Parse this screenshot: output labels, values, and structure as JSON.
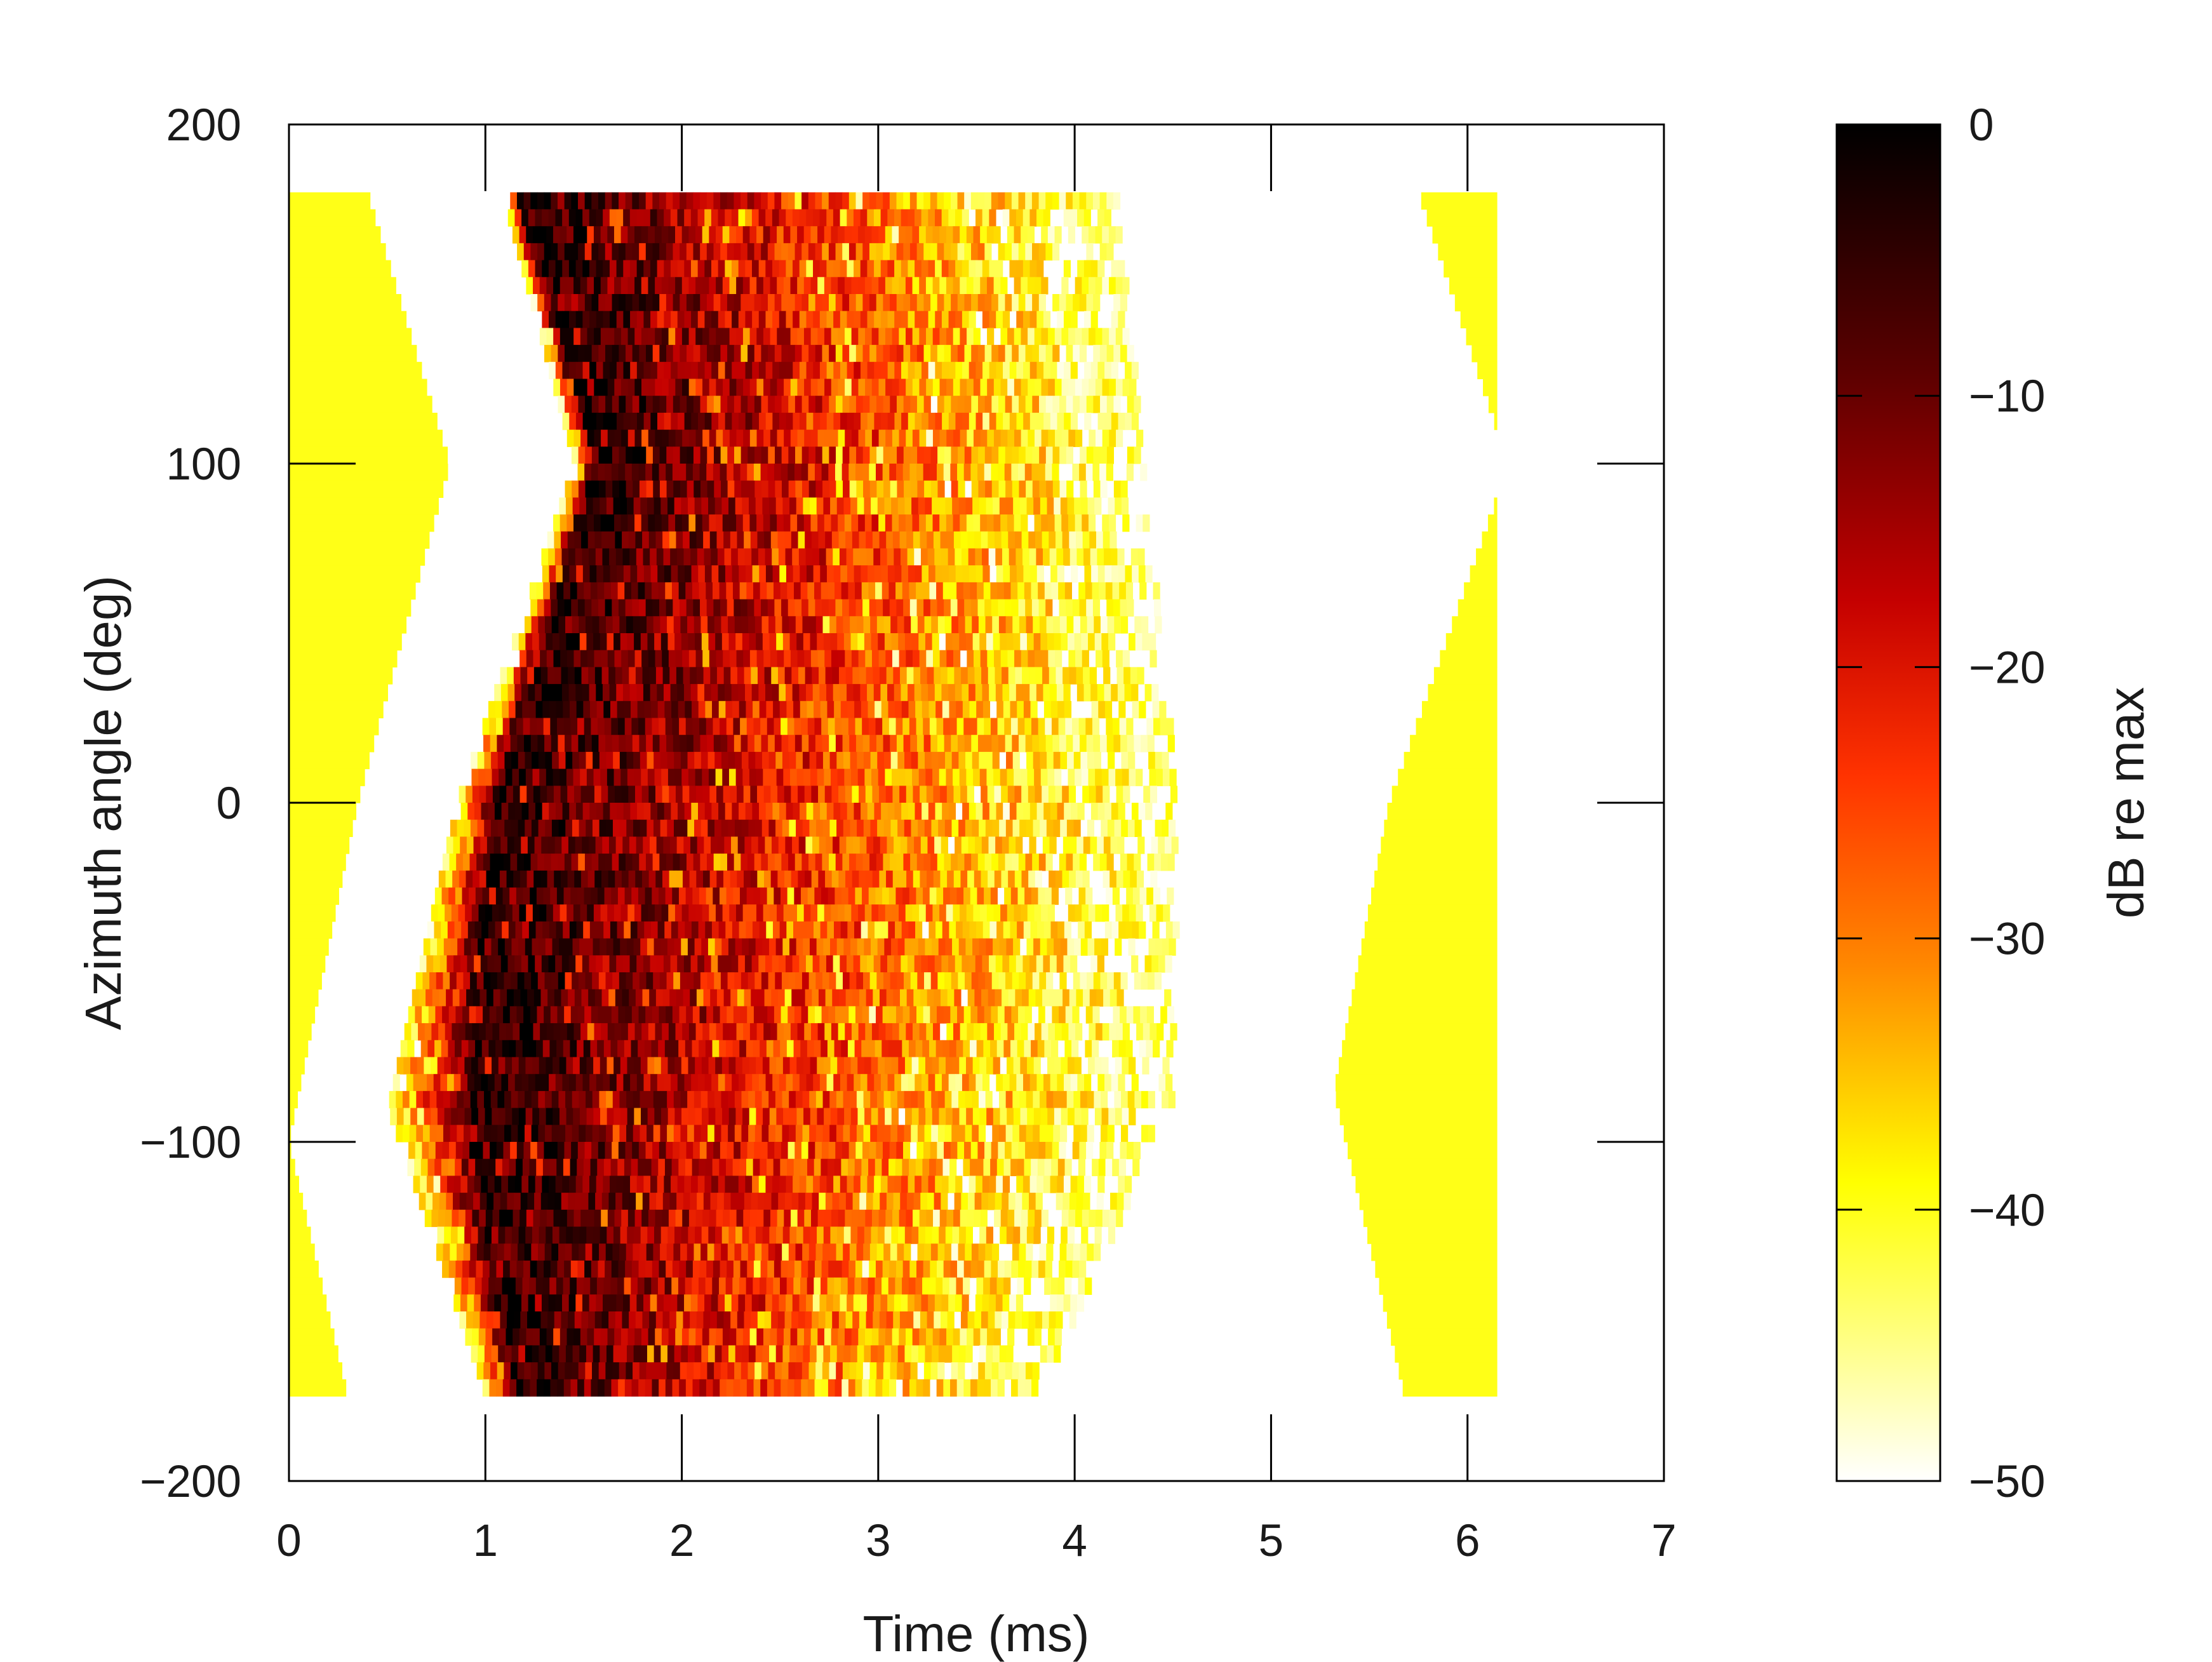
{
  "chart_data": {
    "type": "heatmap",
    "title": "",
    "xlabel": "Time (ms)",
    "ylabel": "Azimuth angle (deg)",
    "xlim": [
      0,
      7
    ],
    "ylim": [
      -200,
      200
    ],
    "x_ticks": [
      0,
      1,
      2,
      3,
      4,
      5,
      6,
      7
    ],
    "x_tick_labels": [
      "0",
      "1",
      "2",
      "3",
      "4",
      "5",
      "6",
      "7"
    ],
    "y_ticks": [
      200,
      100,
      0,
      -100,
      -200
    ],
    "y_tick_labels": [
      "200",
      "100",
      "0",
      "−100",
      "−200"
    ],
    "data_extent": {
      "time_ms": [
        0,
        6.15
      ],
      "azimuth_deg": [
        -175,
        180
      ]
    },
    "colorbar": {
      "label": "dB re max",
      "range": [
        -50,
        0
      ],
      "ticks": [
        0,
        -10,
        -20,
        -30,
        -40,
        -50
      ],
      "tick_labels": [
        "0",
        "−10",
        "−20",
        "−30",
        "−40",
        "−50"
      ],
      "colormap": "hot (white → yellow → orange → red → dark red → black)"
    },
    "features": {
      "direct_arrival_peak_time_ms": [
        {
          "azimuth_deg": 180,
          "time_ms": 1.15
        },
        {
          "azimuth_deg": 100,
          "time_ms": 1.55
        },
        {
          "azimuth_deg": 0,
          "time_ms": 1.05
        },
        {
          "azimuth_deg": -90,
          "time_ms": 0.9
        },
        {
          "azimuth_deg": -175,
          "time_ms": 1.15
        }
      ],
      "first_arrival_envelope_ms": [
        {
          "azimuth_deg": 180,
          "time_ms": 1.08
        },
        {
          "azimuth_deg": 100,
          "time_ms": 1.45
        },
        {
          "azimuth_deg": 0,
          "time_ms": 0.85
        },
        {
          "azimuth_deg": -90,
          "time_ms": 0.5
        },
        {
          "azimuth_deg": -175,
          "time_ms": 1.0
        }
      ],
      "tail_end_time_ms": [
        {
          "azimuth_deg": 180,
          "time_ms": 4.2
        },
        {
          "azimuth_deg": 5,
          "time_ms": 4.5
        },
        {
          "azimuth_deg": -90,
          "time_ms": 4.5
        },
        {
          "azimuth_deg": -175,
          "time_ms": 3.8
        }
      ],
      "pre_window_edge_ms": [
        {
          "azimuth_deg": 180,
          "time_ms": 0.4
        },
        {
          "azimuth_deg": 100,
          "time_ms": 0.82
        },
        {
          "azimuth_deg": 0,
          "time_ms": 0.35
        },
        {
          "azimuth_deg": -100,
          "time_ms": 0.0
        },
        {
          "azimuth_deg": -175,
          "time_ms": 0.3
        }
      ],
      "late_window_edge_ms": [
        {
          "azimuth_deg": 180,
          "time_ms": 5.75
        },
        {
          "azimuth_deg": 110,
          "time_ms": 6.15
        },
        {
          "azimuth_deg": 90,
          "time_ms": 6.15
        },
        {
          "azimuth_deg": 0,
          "time_ms": 5.6
        },
        {
          "azimuth_deg": -85,
          "time_ms": 5.32
        },
        {
          "azimuth_deg": -175,
          "time_ms": 5.68
        }
      ],
      "pre_window_level_db": -40,
      "late_window_level_db": -40
    }
  }
}
